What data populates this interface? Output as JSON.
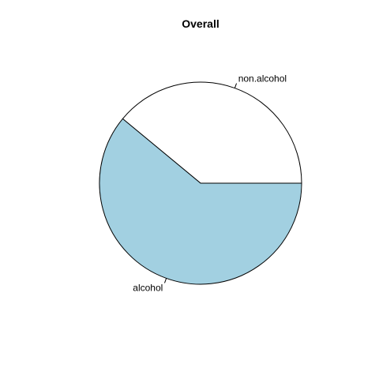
{
  "chart_data": {
    "type": "pie",
    "title": "Overall",
    "slices": [
      {
        "label": "non.alcohol",
        "value": 0.39,
        "color": "#ffffff"
      },
      {
        "label": "alcohol",
        "value": 0.61,
        "color": "#a2d0e1"
      }
    ],
    "direction": "counterclockwise",
    "start_angle_degrees": 0,
    "border_color": "#000000",
    "grid": false
  }
}
